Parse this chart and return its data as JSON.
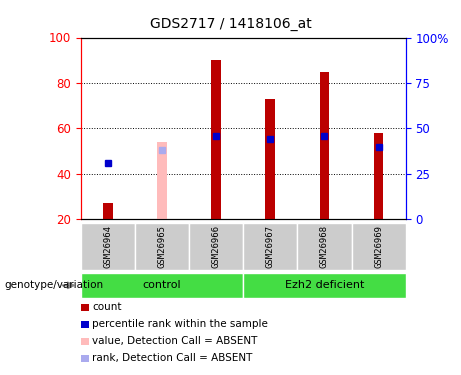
{
  "title": "GDS2717 / 1418106_at",
  "samples": [
    "GSM26964",
    "GSM26965",
    "GSM26966",
    "GSM26967",
    "GSM26968",
    "GSM26969"
  ],
  "count_values": [
    27,
    null,
    90,
    73,
    85,
    58
  ],
  "rank_values": [
    31,
    null,
    46,
    44,
    46,
    40
  ],
  "count_absent": [
    null,
    54,
    null,
    null,
    null,
    null
  ],
  "rank_absent": [
    null,
    38,
    null,
    null,
    null,
    null
  ],
  "absent_count_also": [
    27,
    null,
    null,
    null,
    null,
    null
  ],
  "ylim_left": [
    20,
    100
  ],
  "ylim_right": [
    0,
    100
  ],
  "yticks_left": [
    20,
    40,
    60,
    80,
    100
  ],
  "yticks_right": [
    0,
    25,
    50,
    75,
    100
  ],
  "ytick_labels_right": [
    "0",
    "25",
    "50",
    "75",
    "100%"
  ],
  "bar_color_red": "#bb0000",
  "bar_color_pink": "#ffbbbb",
  "dot_color_blue": "#0000cc",
  "dot_color_lightblue": "#aaaaee",
  "bar_width": 0.18,
  "legend_items": [
    {
      "label": "count",
      "color": "#bb0000"
    },
    {
      "label": "percentile rank within the sample",
      "color": "#0000cc"
    },
    {
      "label": "value, Detection Call = ABSENT",
      "color": "#ffbbbb"
    },
    {
      "label": "rank, Detection Call = ABSENT",
      "color": "#aaaaee"
    }
  ],
  "genotype_label": "genotype/variation",
  "ctrl_label": "control",
  "ezh2_label": "Ezh2 deficient",
  "green_color": "#44dd44",
  "grey_color": "#cccccc"
}
